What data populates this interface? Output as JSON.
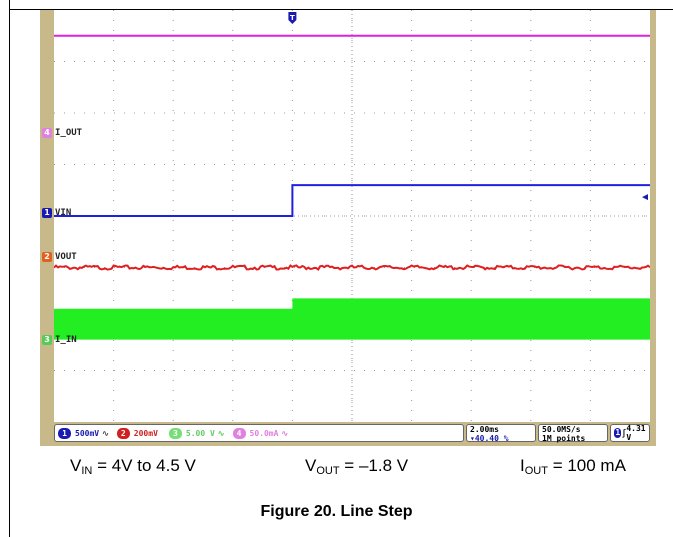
{
  "chart_data": {
    "type": "line",
    "title": "",
    "xlabel": "",
    "ylabel": "",
    "grid": true,
    "x_divisions": 10,
    "y_divisions": 8,
    "trigger_position_div": 4,
    "series": [
      {
        "name": "I_OUT",
        "channel": "4",
        "color": "#e020e0",
        "x": [
          0,
          10
        ],
        "y_div": [
          7.5,
          7.5
        ]
      },
      {
        "name": "VIN",
        "channel": "1",
        "color": "#2020e0",
        "x": [
          0,
          4,
          4,
          10
        ],
        "y_div": [
          4.0,
          4.0,
          4.6,
          4.6
        ]
      },
      {
        "name": "VOUT",
        "channel": "2",
        "color": "#e02020",
        "x": [
          0,
          10
        ],
        "y_div": [
          3.0,
          3.0
        ],
        "noise_div": 0.04
      },
      {
        "name": "I_IN",
        "channel": "3",
        "color": "#22ee22",
        "x": [
          0,
          4,
          4,
          10
        ],
        "y_top_div": [
          2.2,
          2.2,
          2.4,
          2.4
        ],
        "y_bottom_div": [
          1.6,
          1.6,
          1.6,
          1.6
        ]
      }
    ]
  },
  "scope": {
    "trigger_marker": "T",
    "channels": [
      {
        "id": "4",
        "label": "I_OUT",
        "color": "#e020e0"
      },
      {
        "id": "1",
        "label": "VIN",
        "color": "#2020e0"
      },
      {
        "id": "2",
        "label": "VOUT",
        "color": "#e02020"
      },
      {
        "id": "3",
        "label": "I_IN",
        "color": "#22bb22"
      }
    ],
    "settings": [
      {
        "ch": "1",
        "value": "500mV",
        "bw": "Bw",
        "color": "#1a1ab0"
      },
      {
        "ch": "2",
        "value": "200mV",
        "bw": "",
        "color": "#d02020"
      },
      {
        "ch": "3",
        "value": "5.00 V",
        "bw": "Bw",
        "color": "#55cc55"
      },
      {
        "ch": "4",
        "value": "50.0mA",
        "bw": "Bw",
        "color": "#e080e0"
      }
    ],
    "timebase": "2.00ms",
    "trigger_pos": "40.40 %",
    "sample_rate": "50.0MS/s",
    "record_length": "1M points",
    "trigger_ch": "1",
    "trigger_slope": "∫",
    "trigger_level": "4.31 V"
  },
  "captions": {
    "vin": {
      "main": "V",
      "sub": "IN",
      "rest": " = 4V to 4.5 V"
    },
    "vout": {
      "main": "V",
      "sub": "OUT",
      "rest": " = –1.8 V"
    },
    "iout": {
      "main": "I",
      "sub": "OUT",
      "rest": " = 100 mA"
    }
  },
  "figure_title": "Figure 20. Line Step"
}
